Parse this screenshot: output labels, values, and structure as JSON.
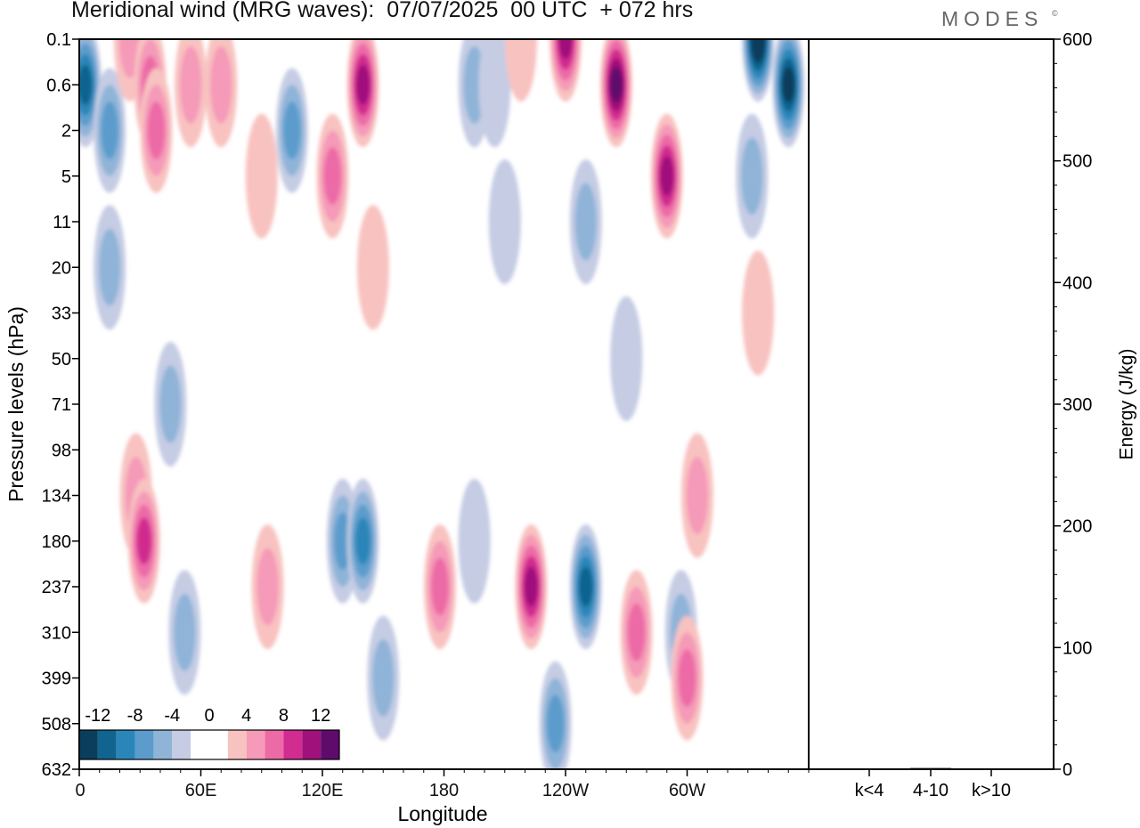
{
  "title": "Meridional wind (MRG waves):  07/07/2025  00 UTC  + 072 hrs",
  "brand": "MODES",
  "brand_mark": "©",
  "chart_data": [
    {
      "type": "heatmap",
      "title": "Meridional wind (MRG waves):  07/07/2025  00 UTC  + 072 hrs",
      "xlabel": "Longitude",
      "ylabel": "Pressure levels (hPa)",
      "x_ticks": [
        "0",
        "60E",
        "120E",
        "180",
        "120W",
        "60W"
      ],
      "x_range_deg": [
        0,
        360
      ],
      "y_ticks": [
        "0.1",
        "0.6",
        "2",
        "5",
        "11",
        "20",
        "33",
        "50",
        "71",
        "98",
        "134",
        "180",
        "237",
        "310",
        "399",
        "508",
        "632"
      ],
      "colorbar": {
        "labels": [
          "-12",
          "-8",
          "-4",
          "0",
          "4",
          "8",
          "12"
        ],
        "levels": [
          -14,
          -12,
          -10,
          -8,
          -6,
          -4,
          -2,
          0,
          2,
          4,
          6,
          8,
          10,
          12,
          14
        ],
        "colors": [
          "#0b3d5c",
          "#11648f",
          "#2a86b8",
          "#5b9ccc",
          "#8fb4d8",
          "#c5cce4",
          "#ffffff",
          "#ffffff",
          "#f8c2c0",
          "#f59ab8",
          "#ec6aa6",
          "#d12c8f",
          "#a0117c",
          "#5e0b6c"
        ]
      },
      "anomalies": [
        {
          "lon": 3,
          "level": "0.6",
          "value": -11
        },
        {
          "lon": 15,
          "level": "2",
          "value": -7
        },
        {
          "lon": 25,
          "level": "0.1",
          "value": 5
        },
        {
          "lon": 35,
          "level": "0.6",
          "value": 7
        },
        {
          "lon": 38,
          "level": "2",
          "value": 6
        },
        {
          "lon": 55,
          "level": "0.6",
          "value": 4
        },
        {
          "lon": 70,
          "level": "0.6",
          "value": 4
        },
        {
          "lon": 105,
          "level": "2",
          "value": -6
        },
        {
          "lon": 90,
          "level": "5",
          "value": 3
        },
        {
          "lon": 140,
          "level": "0.6",
          "value": 11
        },
        {
          "lon": 125,
          "level": "5",
          "value": 6
        },
        {
          "lon": 195,
          "level": "0.6",
          "value": -4
        },
        {
          "lon": 205,
          "level": "0.6",
          "value": -3
        },
        {
          "lon": 218,
          "level": "0.1",
          "value": 3
        },
        {
          "lon": 240,
          "level": "0.1",
          "value": 10
        },
        {
          "lon": 265,
          "level": "0.6",
          "value": 13
        },
        {
          "lon": 290,
          "level": "5",
          "value": 10
        },
        {
          "lon": 335,
          "level": "0.1",
          "value": -14
        },
        {
          "lon": 350,
          "level": "0.6",
          "value": -13
        },
        {
          "lon": 332,
          "level": "5",
          "value": -5
        },
        {
          "lon": 250,
          "level": "11",
          "value": -4
        },
        {
          "lon": 210,
          "level": "11",
          "value": -3
        },
        {
          "lon": 15,
          "level": "20",
          "value": -5
        },
        {
          "lon": 145,
          "level": "20",
          "value": 3
        },
        {
          "lon": 335,
          "level": "33",
          "value": 3
        },
        {
          "lon": 270,
          "level": "50",
          "value": -3
        },
        {
          "lon": 45,
          "level": "71",
          "value": -5
        },
        {
          "lon": 28,
          "level": "134",
          "value": 4
        },
        {
          "lon": 32,
          "level": "180",
          "value": 8
        },
        {
          "lon": 52,
          "level": "310",
          "value": -4
        },
        {
          "lon": 93,
          "level": "237",
          "value": 4
        },
        {
          "lon": 130,
          "level": "180",
          "value": -6
        },
        {
          "lon": 140,
          "level": "180",
          "value": -8
        },
        {
          "lon": 150,
          "level": "399",
          "value": -4
        },
        {
          "lon": 178,
          "level": "237",
          "value": 7
        },
        {
          "lon": 195,
          "level": "180",
          "value": -3
        },
        {
          "lon": 223,
          "level": "237",
          "value": 11
        },
        {
          "lon": 250,
          "level": "237",
          "value": -10
        },
        {
          "lon": 235,
          "level": "508",
          "value": -6
        },
        {
          "lon": 275,
          "level": "310",
          "value": 7
        },
        {
          "lon": 297,
          "level": "310",
          "value": -4
        },
        {
          "lon": 305,
          "level": "134",
          "value": 5
        },
        {
          "lon": 300,
          "level": "399",
          "value": 7
        }
      ]
    },
    {
      "type": "bar",
      "categories": [
        "k<4",
        "4-10",
        "k>10"
      ],
      "values": [
        0,
        1,
        0
      ],
      "ylabel": "Energy (J/kg)",
      "ylim": [
        0,
        600
      ],
      "yticks": [
        0,
        100,
        200,
        300,
        400,
        500,
        600
      ]
    }
  ]
}
